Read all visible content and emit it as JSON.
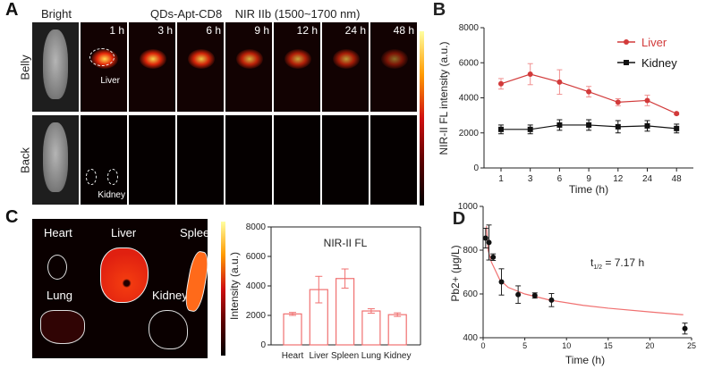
{
  "panel_a": {
    "label": "A",
    "bright_title": "Bright",
    "title": "QDs-Apt-CD8    NIR IIb (1500~1700 nm)",
    "row_labels": [
      "Belly",
      "Back"
    ],
    "timepoints": [
      "1 h",
      "3 h",
      "6 h",
      "9 h",
      "12 h",
      "24 h",
      "48 h"
    ],
    "liver_annotation": "Liver",
    "kidney_annotation": "Kidney",
    "colormap": [
      "#000000",
      "#5a0000",
      "#d01010",
      "#ff9a00",
      "#ffffa0"
    ]
  },
  "panel_c": {
    "label": "C",
    "organs": [
      "Heart",
      "Liver",
      "Spleen",
      "Lung",
      "Kidney"
    ],
    "colorbar_label": "Intensity (a.u.)"
  },
  "chart_data": [
    {
      "panel": "B",
      "type": "line",
      "categories": [
        "1",
        "3",
        "6",
        "9",
        "12",
        "24",
        "48"
      ],
      "xlabel": "Time (h)",
      "ylabel": "NIR-II FL intensity (a.u.)",
      "ylim": [
        0,
        8000
      ],
      "yticks": [
        0,
        2000,
        4000,
        6000,
        8000
      ],
      "legend": "top-right",
      "series": [
        {
          "name": "Liver",
          "color": "#d23a3a",
          "marker": "circle",
          "values": [
            4800,
            5350,
            4900,
            4350,
            3750,
            3850,
            3100
          ],
          "errors": [
            300,
            600,
            700,
            300,
            200,
            300,
            60
          ]
        },
        {
          "name": "Kidney",
          "color": "#111111",
          "marker": "square",
          "values": [
            2200,
            2200,
            2450,
            2450,
            2350,
            2400,
            2250
          ],
          "errors": [
            250,
            250,
            300,
            300,
            350,
            300,
            250
          ]
        }
      ]
    },
    {
      "panel": "C",
      "type": "bar",
      "title": "NIR-II FL",
      "categories": [
        "Heart",
        "Liver",
        "Spleen",
        "Lung",
        "Kidney"
      ],
      "values": [
        2100,
        3750,
        4500,
        2300,
        2050
      ],
      "errors": [
        100,
        900,
        650,
        150,
        120
      ],
      "ylabel": "Intensity (a.u.)",
      "ylim": [
        0,
        8000
      ],
      "yticks": [
        0,
        2000,
        4000,
        6000,
        8000
      ],
      "color": "#f07070"
    },
    {
      "panel": "D",
      "type": "scatter",
      "xlabel": "Time (h)",
      "ylabel": "Pb2+ (μg/L)",
      "xlim": [
        0,
        25
      ],
      "ylim": [
        400,
        1000
      ],
      "xticks": [
        0,
        5,
        10,
        15,
        20,
        25
      ],
      "yticks": [
        400,
        600,
        800,
        1000
      ],
      "annotation": {
        "main": "t",
        "sub": "1/2",
        "rest": " = 7.17 h"
      },
      "points": [
        {
          "x": 0.3,
          "y": 855,
          "err": 45
        },
        {
          "x": 0.7,
          "y": 835,
          "err": 80
        },
        {
          "x": 1.2,
          "y": 768,
          "err": 15
        },
        {
          "x": 2.2,
          "y": 655,
          "err": 60
        },
        {
          "x": 4.2,
          "y": 597,
          "err": 40
        },
        {
          "x": 6.2,
          "y": 593,
          "err": 12
        },
        {
          "x": 8.2,
          "y": 572,
          "err": 30
        },
        {
          "x": 24.2,
          "y": 442,
          "err": 25
        }
      ],
      "fit_curve": {
        "color": "#f07070",
        "points": [
          [
            0.4,
            910
          ],
          [
            0.6,
            800
          ],
          [
            1,
            745
          ],
          [
            2,
            665
          ],
          [
            3,
            630
          ],
          [
            5,
            600
          ],
          [
            8,
            572
          ],
          [
            12,
            548
          ],
          [
            15,
            535
          ],
          [
            20,
            518
          ],
          [
            24,
            505
          ]
        ]
      }
    }
  ]
}
